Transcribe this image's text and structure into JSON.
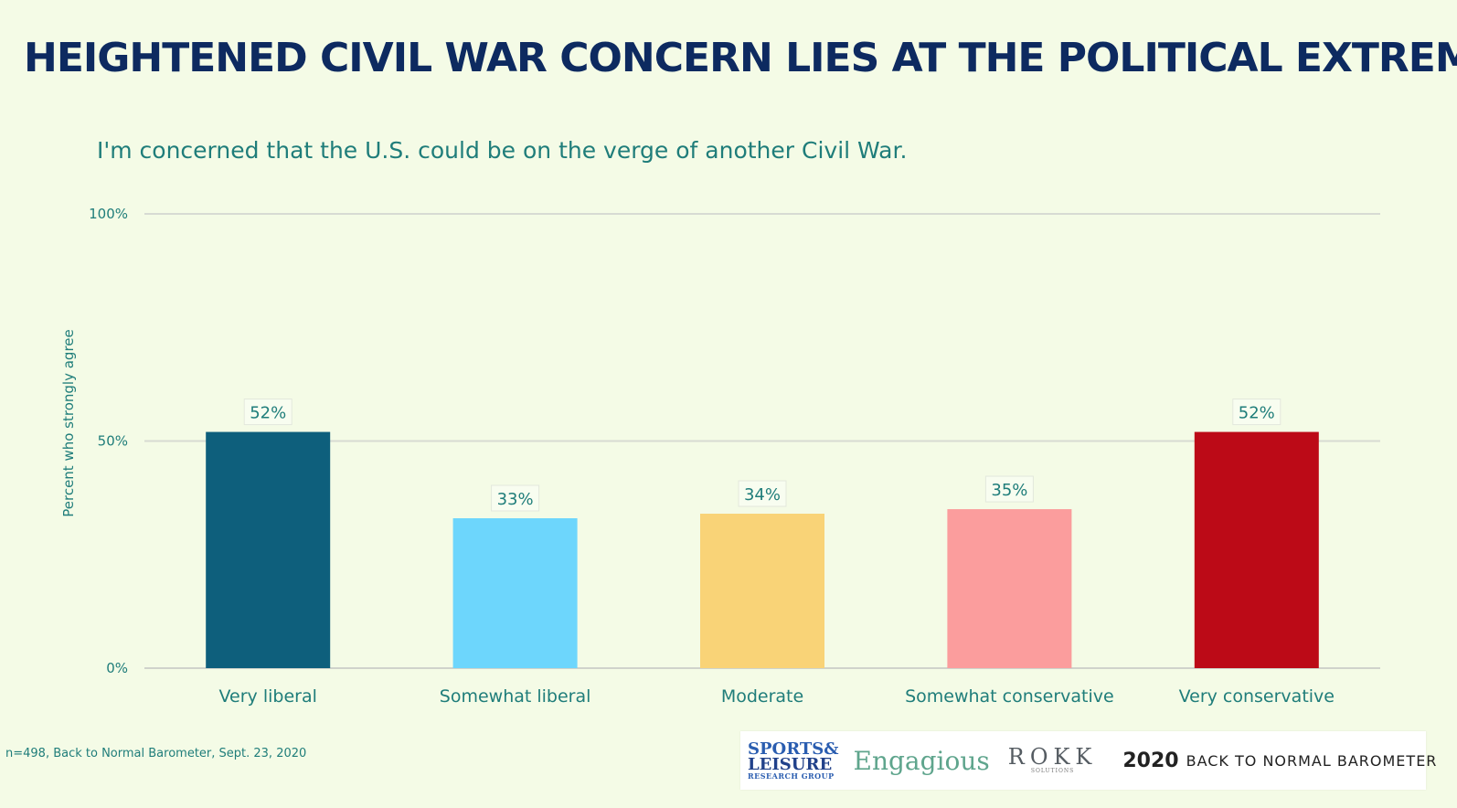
{
  "title": "HEIGHTENED CIVIL WAR CONCERN LIES AT THE POLITICAL EXTREMES",
  "subtitle": "I'm concerned that the U.S. could be on the verge of another Civil War.",
  "footnote": "n=498, Back to Normal Barometer, Sept. 23, 2020",
  "chart_data": {
    "type": "bar",
    "title": "I'm concerned that the U.S. could be on the verge of another Civil War.",
    "xlabel": "",
    "ylabel": "Percent who strongly agree",
    "categories": [
      "Very liberal",
      "Somewhat liberal",
      "Moderate",
      "Somewhat conservative",
      "Very conservative"
    ],
    "values": [
      52,
      33,
      34,
      35,
      52
    ],
    "value_labels": [
      "52%",
      "33%",
      "34%",
      "35%",
      "52%"
    ],
    "colors": [
      "#0e5f7c",
      "#6dd6fc",
      "#f9d377",
      "#fb9d9d",
      "#bc0a17"
    ],
    "ylim": [
      0,
      100
    ],
    "yticks": [
      0,
      50,
      100
    ],
    "ytick_labels": [
      "0%",
      "50%",
      "100%"
    ],
    "grid": true
  },
  "logos": {
    "sports_line1": "SPORTS&",
    "sports_line2": "LEISURE",
    "sports_line3": "RESEARCH GROUP",
    "engagious": "Engagious",
    "rokk": "ROKK",
    "rokk_sub": "SOLUTIONS",
    "barometer_year": "2020",
    "barometer_text": "BACK TO NORMAL BAROMETER"
  }
}
